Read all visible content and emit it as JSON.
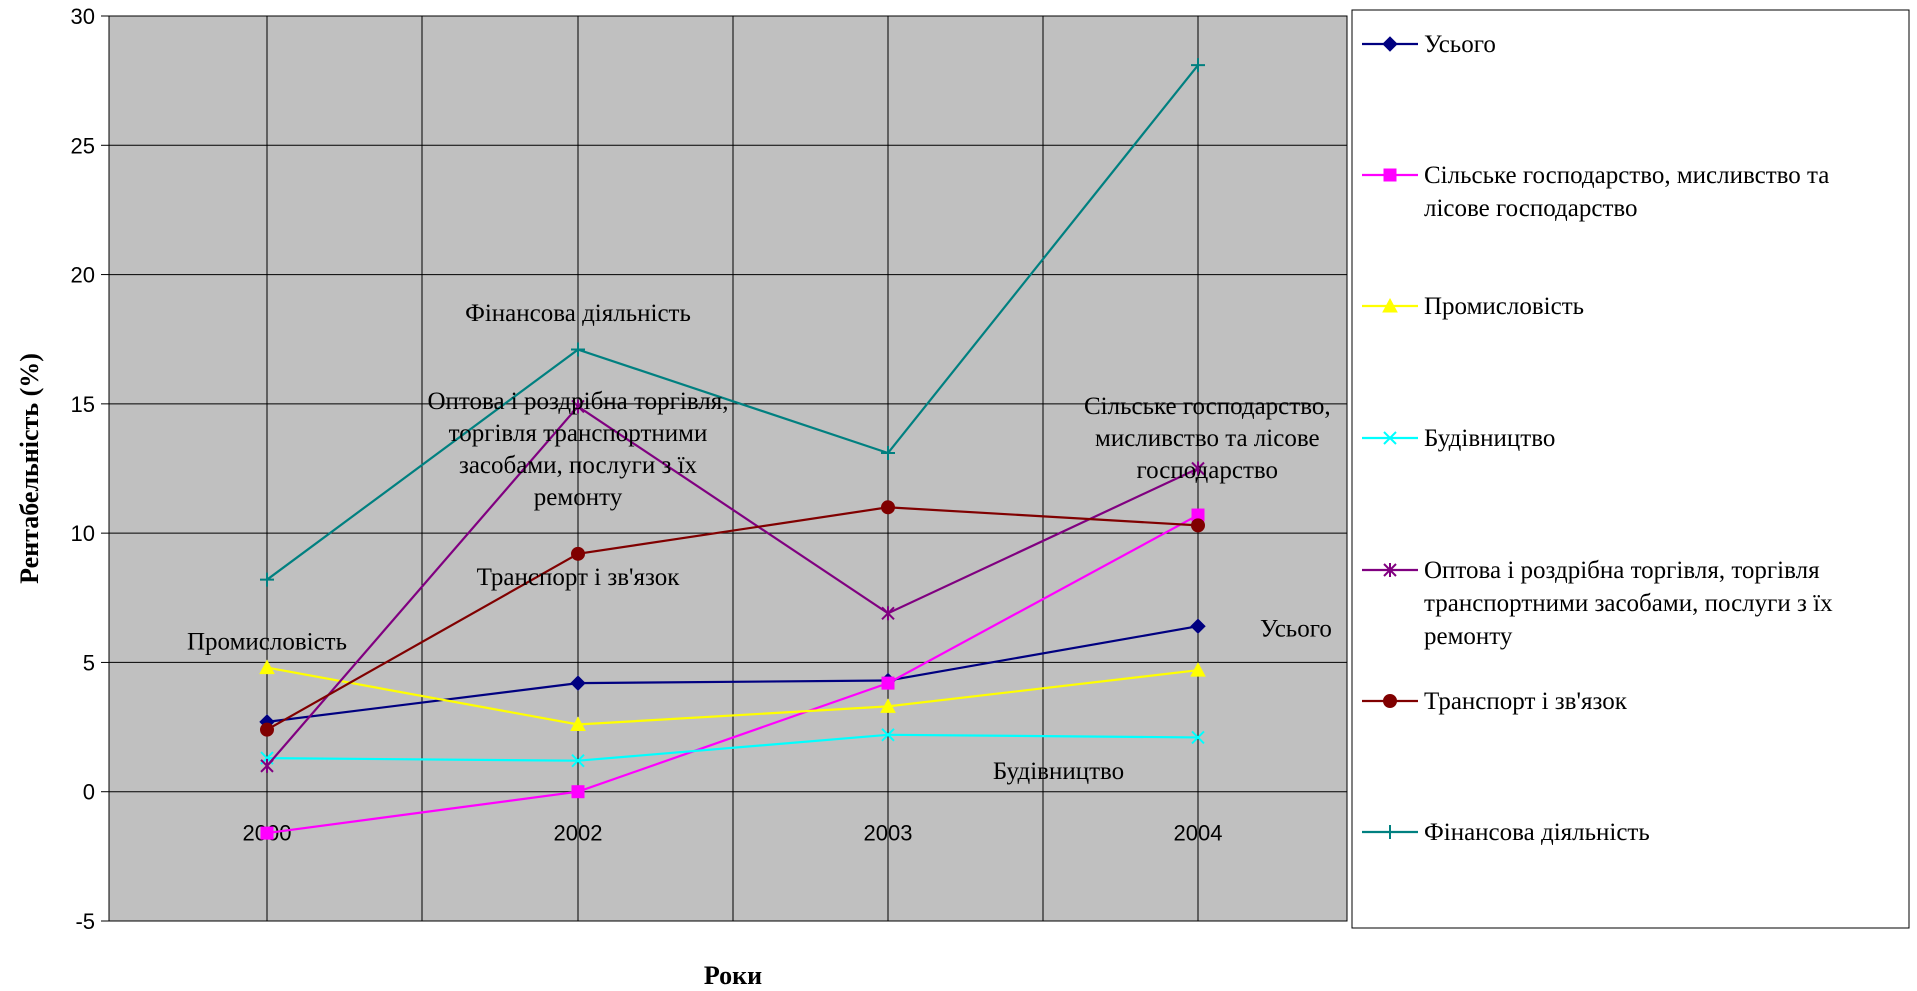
{
  "chart_data": {
    "type": "line",
    "categories": [
      "2000",
      "2002",
      "2003",
      "2004"
    ],
    "ylim": [
      -5,
      30
    ],
    "yticks": [
      -5,
      0,
      5,
      10,
      15,
      20,
      25,
      30
    ],
    "xlabel": "Роки",
    "ylabel": "Рентабельність (%)",
    "grid": true,
    "legend_position": "right",
    "plot_background": "#c0c0c0",
    "series": [
      {
        "name": "Усього",
        "color": "#000080",
        "marker": "diamond",
        "values": [
          2.7,
          4.2,
          4.3,
          6.4
        ]
      },
      {
        "name": "Сільське господарство, мисливство та лісове господарство",
        "color": "#ff00ff",
        "marker": "square",
        "values": [
          -1.6,
          0.0,
          4.2,
          10.7
        ]
      },
      {
        "name": "Промисловість",
        "color": "#ffff00",
        "marker": "triangle",
        "values": [
          4.8,
          2.6,
          3.3,
          4.7
        ]
      },
      {
        "name": "Будівництво",
        "color": "#00ffff",
        "marker": "x",
        "values": [
          1.3,
          1.2,
          2.2,
          2.1
        ]
      },
      {
        "name": "Оптова і роздрібна торгівля, торгівля транспортними засобами, послуги з їх ремонту",
        "color": "#800080",
        "marker": "star",
        "values": [
          1.0,
          14.9,
          6.9,
          12.5
        ]
      },
      {
        "name": "Транспорт і зв'язок",
        "color": "#800000",
        "marker": "circle",
        "values": [
          2.4,
          9.2,
          11.0,
          10.3
        ]
      },
      {
        "name": "Фінансова діяльність",
        "color": "#008080",
        "marker": "plus",
        "values": [
          8.2,
          17.1,
          13.1,
          28.1
        ]
      }
    ],
    "legend_lines": [
      [
        "Усього"
      ],
      [
        "Сільське господарство, мисливство та",
        "лісове господарство"
      ],
      [
        "Промисловість"
      ],
      [
        "Будівництво"
      ],
      [
        "Оптова і роздрібна торгівля, торгівля",
        "транспортними засобами, послуги з їх",
        "ремонту"
      ],
      [
        "Транспорт і зв'язок"
      ],
      [
        "Фінансова діяльність"
      ]
    ],
    "annotations": [
      {
        "lines": [
          "Фінансова діяльність"
        ],
        "x": 1,
        "y": 18.2,
        "anchor": "middle"
      },
      {
        "lines": [
          "Оптова і роздрібна торгівля,",
          "торгівля транспортними",
          "засобами, послуги з їх",
          "ремонту"
        ],
        "x": 1,
        "y": 14.8,
        "anchor": "middle"
      },
      {
        "lines": [
          "Транспорт і зв'язок"
        ],
        "x": 1,
        "y": 8.0,
        "anchor": "middle"
      },
      {
        "lines": [
          "Промисловість"
        ],
        "x": 0,
        "y": 5.5,
        "anchor": "middle"
      },
      {
        "lines": [
          "Сільське господарство,",
          "мисливство та лісове",
          "господарство"
        ],
        "x": 3.03,
        "y": 14.6,
        "anchor": "middle"
      },
      {
        "lines": [
          "Усього"
        ],
        "x": 3.2,
        "y": 6.0,
        "anchor": "start"
      },
      {
        "lines": [
          "Будівництво"
        ],
        "x": 2.55,
        "y": 0.5,
        "anchor": "middle"
      }
    ]
  }
}
